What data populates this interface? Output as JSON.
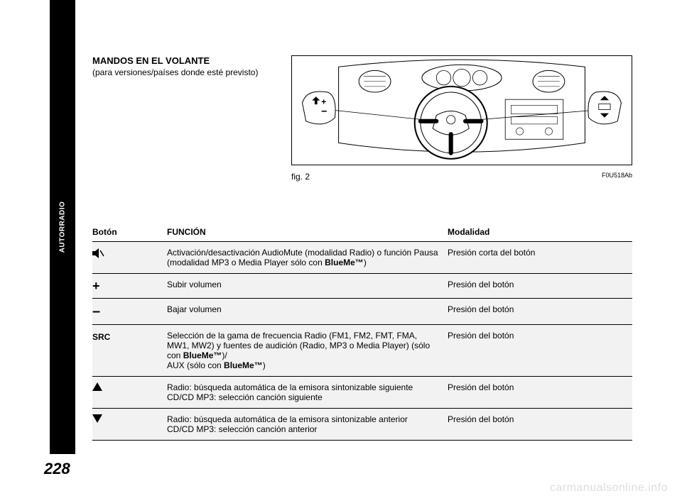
{
  "sidebar": {
    "label": "AUTORRADIO"
  },
  "page_number": "228",
  "heading": {
    "title": "MANDOS EN EL VOLANTE",
    "subtitle": "(para versiones/países donde esté previsto)"
  },
  "figure": {
    "caption": "fig. 2",
    "code": "F0U518Ab"
  },
  "table": {
    "headers": {
      "btn": "Botón",
      "fun": "FUNCIÓN",
      "mod": "Modalidad"
    },
    "rows": [
      {
        "btn_type": "mute-icon",
        "fun_html": "Activación/desactivación AudioMute (modalidad Radio) o función Pausa (modalidad MP3 o Media Player sólo con <b>BlueMe™</b>)",
        "mod": "Presión corta del botón"
      },
      {
        "btn_type": "plus",
        "btn_text": "+",
        "fun_html": "Subir volumen",
        "mod": "Presión del botón"
      },
      {
        "btn_type": "minus",
        "btn_text": "–",
        "fun_html": "Bajar volumen",
        "mod": "Presión del botón"
      },
      {
        "btn_type": "text",
        "btn_text": "SRC",
        "fun_html": "Selección de la gama de frecuencia Radio (FM1, FM2, FMT, FMA, MW1, MW2) y fuentes de audición (Radio, MP3 o Media Player) (sólo con <b>BlueMe™</b>)/<br>AUX (sólo con <b>BlueMe™</b>)",
        "mod": "Presión del botón"
      },
      {
        "btn_type": "up-icon",
        "fun_html": "Radio: búsqueda automática de la emisora sintonizable siguiente<br>CD/CD MP3: selección canción siguiente",
        "mod": "Presión del botón"
      },
      {
        "btn_type": "down-icon",
        "fun_html": "Radio: búsqueda automática de la emisora sintonizable anterior<br>CD/CD MP3: selección canción anterior",
        "mod": "Presión del botón"
      }
    ]
  },
  "watermark": "carmanualsonline.info",
  "colors": {
    "page_bg": "#ffffff",
    "tab_bg": "#000000",
    "tab_text": "#ffffff",
    "row_bg": "#f2f2f2",
    "watermark": "#dddddd"
  }
}
